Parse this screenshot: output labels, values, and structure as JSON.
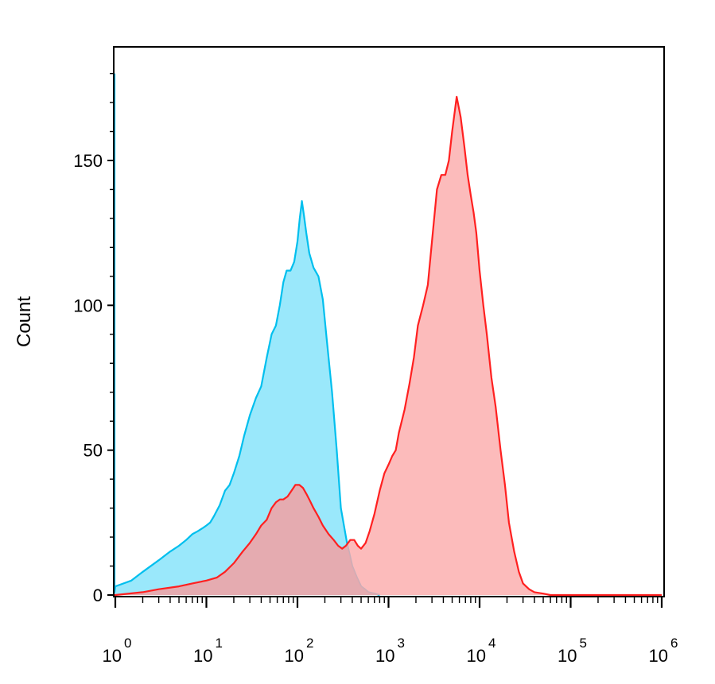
{
  "chart_data": {
    "type": "area",
    "title": "",
    "ylabel": "Count",
    "xlabel": "",
    "xscale": "log",
    "ylim": [
      0,
      185
    ],
    "y_ticks": [
      0,
      50,
      100,
      150
    ],
    "x_ticks": [
      {
        "value": 1,
        "base": "10",
        "exp": "0"
      },
      {
        "value": 10,
        "base": "10",
        "exp": "1"
      },
      {
        "value": 100,
        "base": "10",
        "exp": "2"
      },
      {
        "value": 1000,
        "base": "10",
        "exp": "3"
      },
      {
        "value": 10000,
        "base": "10",
        "exp": "4"
      },
      {
        "value": 100000,
        "base": "10",
        "exp": "5"
      },
      {
        "value": 1000000,
        "base": "10",
        "exp": "6"
      }
    ],
    "grid": false,
    "legend": "none",
    "series": [
      {
        "color": "#00bfee",
        "fill": "#8fe6fb",
        "x": [
          0.55,
          0.57,
          0.6,
          0.7,
          1,
          1.5,
          2,
          3,
          4,
          5,
          6,
          7,
          8,
          9,
          10,
          11,
          12,
          14,
          16,
          18,
          20,
          23,
          26,
          30,
          35,
          40,
          46,
          52,
          58,
          64,
          70,
          76,
          84,
          92,
          100,
          106,
          112,
          118,
          125,
          135,
          150,
          170,
          190,
          210,
          240,
          270,
          300,
          350,
          400,
          450,
          500,
          550,
          600,
          700,
          800
        ],
        "y": [
          180,
          60,
          2,
          1,
          3,
          5,
          8,
          12,
          15,
          17,
          19,
          21,
          22,
          23,
          24,
          25,
          27,
          31,
          36,
          38,
          42,
          48,
          55,
          62,
          68,
          72,
          82,
          90,
          93,
          100,
          108,
          112,
          112,
          115,
          122,
          130,
          136,
          131,
          125,
          118,
          113,
          110,
          102,
          88,
          70,
          50,
          30,
          18,
          10,
          6,
          3,
          2,
          1,
          0.5,
          0
        ]
      },
      {
        "color": "#ff2020",
        "fill": "#fbaaaa",
        "x": [
          0.6,
          1,
          2,
          3,
          5,
          7,
          10,
          13,
          16,
          20,
          25,
          30,
          35,
          40,
          46,
          52,
          58,
          64,
          70,
          78,
          86,
          95,
          105,
          115,
          125,
          135,
          150,
          170,
          190,
          220,
          250,
          280,
          310,
          340,
          380,
          420,
          460,
          500,
          560,
          620,
          700,
          800,
          900,
          1000,
          1100,
          1200,
          1300,
          1500,
          1700,
          1900,
          2100,
          2400,
          2700,
          3000,
          3400,
          3800,
          4200,
          4600,
          5000,
          5600,
          6200,
          6800,
          7400,
          8000,
          8600,
          9200,
          10000,
          11000,
          12000,
          13500,
          15000,
          17000,
          19000,
          21000,
          24000,
          27000,
          30000,
          35000,
          40000,
          50000,
          60000,
          70000,
          80000,
          100000,
          200000,
          500000,
          1000000
        ],
        "y": [
          0,
          0,
          1,
          2,
          3,
          4,
          5,
          6,
          8,
          11,
          15,
          18,
          21,
          24,
          26,
          30,
          32,
          33,
          33,
          34,
          36,
          38,
          38,
          37,
          35,
          33,
          30,
          27,
          24,
          21,
          19,
          17,
          16,
          17,
          19,
          19,
          17,
          16,
          18,
          22,
          28,
          36,
          42,
          45,
          48,
          50,
          56,
          64,
          73,
          82,
          93,
          100,
          107,
          122,
          140,
          145,
          145,
          150,
          160,
          172,
          165,
          155,
          145,
          138,
          132,
          125,
          112,
          100,
          90,
          75,
          65,
          50,
          38,
          25,
          15,
          8,
          4,
          2,
          1,
          0.5,
          0,
          0,
          0,
          0,
          0,
          0,
          0
        ]
      }
    ]
  }
}
